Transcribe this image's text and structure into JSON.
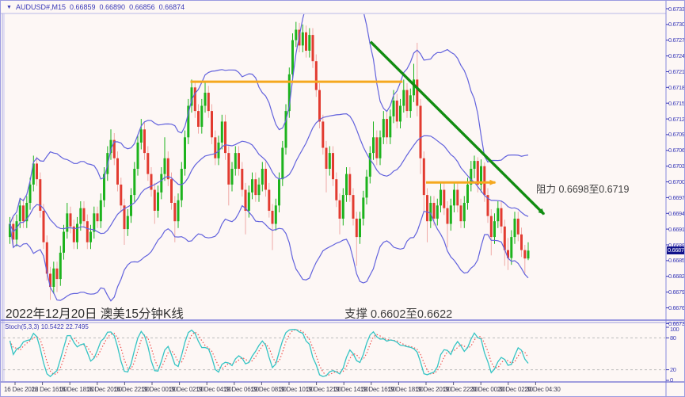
{
  "title_bar": {
    "dropdown_icon": "▼",
    "symbol": "AUDUSD#,M15",
    "open": "0.66859",
    "high": "0.66890",
    "low": "0.66856",
    "close": "0.66874"
  },
  "annotations": {
    "resistance": "阻力 0.6698至0.6719",
    "support": "支撑 0.6602至0.6622",
    "date_label": "2022年12月20日 澳美15分钟K线"
  },
  "indicator_panel": {
    "label": "Stoch(5,3,3) 10.5422 22.7495",
    "axis_labels": [
      100,
      80,
      20,
      0
    ]
  },
  "price_axis": {
    "tick_values": [
      0.67335,
      0.67305,
      0.67275,
      0.67245,
      0.67215,
      0.67185,
      0.67155,
      0.67125,
      0.67095,
      0.67065,
      0.67035,
      0.67005,
      0.66975,
      0.66945,
      0.66915,
      0.66885,
      0.66855,
      0.66825,
      0.66795,
      0.66765,
      0.66735
    ],
    "current_price": "0.66874"
  },
  "time_axis": {
    "labels": [
      "16 Dec 2022",
      "16 Dec 16:30",
      "16 Dec 18:30",
      "16 Dec 20:30",
      "16 Dec 22:30",
      "19 Dec 00:30",
      "19 Dec 02:30",
      "19 Dec 04:30",
      "19 Dec 06:30",
      "19 Dec 08:30",
      "19 Dec 10:30",
      "19 Dec 12:30",
      "19 Dec 14:30",
      "19 Dec 16:30",
      "19 Dec 18:30",
      "19 Dec 20:30",
      "19 Dec 22:30",
      "20 Dec 00:30",
      "20 Dec 02:30",
      "20 Dec 04:30"
    ]
  },
  "colors": {
    "background": "#fdf7f5",
    "frame": "#9b9be0",
    "axis_text": "#3a3ab8",
    "candle_up": "#1db31d",
    "candle_down": "#e23b30",
    "wick_down": "#f0aaa6",
    "bollinger": "#6262dd",
    "orange_line": "#f5a81f",
    "trend_arrow": "#118c11",
    "stoch_main": "#35c4c4",
    "stoch_signal": "#ef5350",
    "price_tag_bg": "#11118b",
    "level_dashed": "#bcbcbc"
  },
  "chart_data": {
    "type": "candlestick",
    "symbol": "AUDUSD#",
    "timeframe": "M15",
    "title": "AUDUSD#,M15 0.66859 0.66890 0.66856 0.66874",
    "y_axis": {
      "min": 0.66735,
      "max": 0.67335,
      "tick_step": 0.0003
    },
    "x_labels": [
      "16 Dec 2022",
      "16 Dec 16:30",
      "16 Dec 18:30",
      "16 Dec 20:30",
      "16 Dec 22:30",
      "19 Dec 00:30",
      "19 Dec 02:30",
      "19 Dec 04:30",
      "19 Dec 06:30",
      "19 Dec 08:30",
      "19 Dec 10:30",
      "19 Dec 12:30",
      "19 Dec 14:30",
      "19 Dec 16:30",
      "19 Dec 18:30",
      "19 Dec 20:30",
      "19 Dec 22:30",
      "20 Dec 00:30",
      "20 Dec 02:30",
      "20 Dec 04:30"
    ],
    "indicators": [
      {
        "name": "Bollinger Bands",
        "period": 20,
        "deviation": 2
      },
      {
        "name": "Stochastic",
        "params": "5,3,3",
        "last_values": [
          10.5422,
          22.7495
        ],
        "scale": [
          0,
          100
        ],
        "levels": [
          80,
          20
        ]
      }
    ],
    "drawings": {
      "resistance_zone": [
        0.6698,
        0.6719
      ],
      "support_zone": [
        0.6602,
        0.6622
      ],
      "resistance_line_upper": {
        "price": 0.67196,
        "from_index": 54,
        "to_index": 117,
        "arrow": false
      },
      "resistance_line_lower": {
        "price": 0.67004,
        "from_index": 124,
        "to_index": 146,
        "arrow": true
      },
      "trendline": {
        "from_index": 107.5,
        "from_price": 0.67272,
        "to_index": 160,
        "to_price": 0.66939,
        "arrow": true
      }
    },
    "candles": [
      [
        0.669,
        0.66938,
        0.66887,
        0.66925
      ],
      [
        0.66925,
        0.66938,
        0.66882,
        0.66895
      ],
      [
        0.66895,
        0.66943,
        0.66882,
        0.6693
      ],
      [
        0.6693,
        0.66973,
        0.66917,
        0.6696
      ],
      [
        0.6696,
        0.66973,
        0.66917,
        0.6693
      ],
      [
        0.6693,
        0.66978,
        0.66917,
        0.66965
      ],
      [
        0.66965,
        0.67013,
        0.66952,
        0.67
      ],
      [
        0.67,
        0.67055,
        0.66987,
        0.6704
      ],
      [
        0.6704,
        0.67053,
        0.66997,
        0.6701
      ],
      [
        0.6701,
        0.67023,
        0.66937,
        0.6695
      ],
      [
        0.6695,
        0.66963,
        0.66877,
        0.6689
      ],
      [
        0.6689,
        0.66903,
        0.66817,
        0.6683
      ],
      [
        0.6683,
        0.66843,
        0.6678,
        0.66805
      ],
      [
        0.66805,
        0.66853,
        0.66792,
        0.6684
      ],
      [
        0.6684,
        0.66853,
        0.66795,
        0.6682
      ],
      [
        0.6682,
        0.66883,
        0.66807,
        0.6687
      ],
      [
        0.6687,
        0.66923,
        0.66857,
        0.6691
      ],
      [
        0.6691,
        0.66965,
        0.66897,
        0.66945
      ],
      [
        0.66945,
        0.66958,
        0.66907,
        0.6692
      ],
      [
        0.6692,
        0.66933,
        0.66877,
        0.6689
      ],
      [
        0.6689,
        0.66938,
        0.66877,
        0.66925
      ],
      [
        0.66925,
        0.66968,
        0.66912,
        0.66955
      ],
      [
        0.66955,
        0.66968,
        0.66917,
        0.6693
      ],
      [
        0.6693,
        0.66943,
        0.66877,
        0.6689
      ],
      [
        0.6689,
        0.66923,
        0.66877,
        0.6691
      ],
      [
        0.6691,
        0.66958,
        0.66897,
        0.66945
      ],
      [
        0.66945,
        0.66958,
        0.66917,
        0.6693
      ],
      [
        0.6693,
        0.66983,
        0.66917,
        0.6697
      ],
      [
        0.6697,
        0.67033,
        0.66957,
        0.6702
      ],
      [
        0.6702,
        0.67073,
        0.67007,
        0.6706
      ],
      [
        0.6706,
        0.67105,
        0.67047,
        0.67085
      ],
      [
        0.67085,
        0.67098,
        0.67037,
        0.6705
      ],
      [
        0.6705,
        0.67063,
        0.66987,
        0.67
      ],
      [
        0.67,
        0.67013,
        0.66947,
        0.6696
      ],
      [
        0.6696,
        0.66973,
        0.66885,
        0.66915
      ],
      [
        0.66915,
        0.66953,
        0.66902,
        0.6694
      ],
      [
        0.6694,
        0.66993,
        0.66927,
        0.6698
      ],
      [
        0.6698,
        0.67043,
        0.66967,
        0.6703
      ],
      [
        0.6703,
        0.67093,
        0.67017,
        0.6708
      ],
      [
        0.6708,
        0.67125,
        0.67067,
        0.67105
      ],
      [
        0.67105,
        0.67118,
        0.67047,
        0.6706
      ],
      [
        0.6706,
        0.67073,
        0.67007,
        0.6702
      ],
      [
        0.6702,
        0.67033,
        0.66977,
        0.6699
      ],
      [
        0.6699,
        0.67003,
        0.66925,
        0.6695
      ],
      [
        0.6695,
        0.66998,
        0.66937,
        0.66985
      ],
      [
        0.66985,
        0.67033,
        0.66972,
        0.6702
      ],
      [
        0.6702,
        0.6709,
        0.67007,
        0.6705
      ],
      [
        0.6705,
        0.67063,
        0.66997,
        0.6701
      ],
      [
        0.6701,
        0.67023,
        0.66952,
        0.66965
      ],
      [
        0.66965,
        0.66978,
        0.6689,
        0.6693
      ],
      [
        0.6693,
        0.66983,
        0.66917,
        0.6697
      ],
      [
        0.6697,
        0.67043,
        0.66957,
        0.6703
      ],
      [
        0.6703,
        0.67103,
        0.67017,
        0.6709
      ],
      [
        0.6709,
        0.67163,
        0.67077,
        0.6715
      ],
      [
        0.6715,
        0.672,
        0.67137,
        0.67185
      ],
      [
        0.67185,
        0.67198,
        0.67127,
        0.6714
      ],
      [
        0.6714,
        0.67153,
        0.67097,
        0.6711
      ],
      [
        0.6711,
        0.67163,
        0.67097,
        0.6715
      ],
      [
        0.6715,
        0.67195,
        0.67137,
        0.67175
      ],
      [
        0.67175,
        0.67188,
        0.67127,
        0.6714
      ],
      [
        0.6714,
        0.67153,
        0.67077,
        0.6709
      ],
      [
        0.6709,
        0.67103,
        0.67037,
        0.6705
      ],
      [
        0.6705,
        0.67093,
        0.67037,
        0.6708
      ],
      [
        0.6708,
        0.67133,
        0.67067,
        0.6712
      ],
      [
        0.6712,
        0.67133,
        0.67047,
        0.6706
      ],
      [
        0.6706,
        0.67073,
        0.6696,
        0.67
      ],
      [
        0.67,
        0.67043,
        0.66987,
        0.6703
      ],
      [
        0.6703,
        0.67073,
        0.67017,
        0.6706
      ],
      [
        0.6706,
        0.67073,
        0.67017,
        0.6703
      ],
      [
        0.6703,
        0.67043,
        0.66977,
        0.6699
      ],
      [
        0.6699,
        0.67003,
        0.66905,
        0.6695
      ],
      [
        0.6695,
        0.66998,
        0.66937,
        0.66985
      ],
      [
        0.66985,
        0.67023,
        0.66972,
        0.6701
      ],
      [
        0.6701,
        0.67023,
        0.66967,
        0.6698
      ],
      [
        0.6698,
        0.67013,
        0.66967,
        0.67
      ],
      [
        0.67,
        0.67043,
        0.66987,
        0.6703
      ],
      [
        0.6703,
        0.67043,
        0.66977,
        0.6699
      ],
      [
        0.6699,
        0.67003,
        0.66937,
        0.6695
      ],
      [
        0.6695,
        0.66963,
        0.66875,
        0.66925
      ],
      [
        0.66925,
        0.66973,
        0.66912,
        0.6696
      ],
      [
        0.6696,
        0.67023,
        0.66947,
        0.6701
      ],
      [
        0.6701,
        0.67083,
        0.66997,
        0.6707
      ],
      [
        0.6707,
        0.67153,
        0.67057,
        0.6714
      ],
      [
        0.6714,
        0.67223,
        0.67127,
        0.6721
      ],
      [
        0.6721,
        0.67288,
        0.67197,
        0.67275
      ],
      [
        0.67275,
        0.6731,
        0.67262,
        0.67295
      ],
      [
        0.67295,
        0.67308,
        0.67252,
        0.67265
      ],
      [
        0.67265,
        0.67305,
        0.67252,
        0.6729
      ],
      [
        0.6729,
        0.67303,
        0.67242,
        0.67255
      ],
      [
        0.67255,
        0.67298,
        0.67242,
        0.67285
      ],
      [
        0.67285,
        0.67298,
        0.67222,
        0.67235
      ],
      [
        0.67235,
        0.67248,
        0.67167,
        0.6718
      ],
      [
        0.6718,
        0.67193,
        0.67107,
        0.6712
      ],
      [
        0.6712,
        0.67133,
        0.67057,
        0.6707
      ],
      [
        0.6707,
        0.67083,
        0.66985,
        0.6703
      ],
      [
        0.6703,
        0.67073,
        0.67017,
        0.6706
      ],
      [
        0.6706,
        0.67073,
        0.66997,
        0.6701
      ],
      [
        0.6701,
        0.67023,
        0.66957,
        0.6697
      ],
      [
        0.6697,
        0.66983,
        0.66905,
        0.66935
      ],
      [
        0.66935,
        0.66993,
        0.66922,
        0.6698
      ],
      [
        0.6698,
        0.67033,
        0.66967,
        0.6702
      ],
      [
        0.6702,
        0.67033,
        0.66967,
        0.6698
      ],
      [
        0.6698,
        0.66993,
        0.66922,
        0.66935
      ],
      [
        0.66935,
        0.66948,
        0.66845,
        0.669
      ],
      [
        0.669,
        0.66948,
        0.66887,
        0.66935
      ],
      [
        0.66935,
        0.66988,
        0.66922,
        0.66975
      ],
      [
        0.66975,
        0.67028,
        0.66962,
        0.67015
      ],
      [
        0.67015,
        0.67073,
        0.67002,
        0.6706
      ],
      [
        0.6706,
        0.6712,
        0.67047,
        0.6709
      ],
      [
        0.6709,
        0.67103,
        0.67037,
        0.6705
      ],
      [
        0.6705,
        0.67103,
        0.67037,
        0.6709
      ],
      [
        0.6709,
        0.6714,
        0.67077,
        0.67125
      ],
      [
        0.67125,
        0.67138,
        0.67077,
        0.6709
      ],
      [
        0.6709,
        0.67143,
        0.67077,
        0.6713
      ],
      [
        0.6713,
        0.6718,
        0.67117,
        0.6716
      ],
      [
        0.6716,
        0.67173,
        0.67107,
        0.6712
      ],
      [
        0.6712,
        0.67163,
        0.67107,
        0.6715
      ],
      [
        0.6715,
        0.672,
        0.67137,
        0.6718
      ],
      [
        0.6718,
        0.67193,
        0.67127,
        0.6714
      ],
      [
        0.6714,
        0.67183,
        0.67127,
        0.6717
      ],
      [
        0.6717,
        0.6723,
        0.67157,
        0.672
      ],
      [
        0.672,
        0.6727,
        0.6713,
        0.6715
      ],
      [
        0.6715,
        0.67163,
        0.6702,
        0.6705
      ],
      [
        0.6705,
        0.67063,
        0.6695,
        0.6698
      ],
      [
        0.6698,
        0.66993,
        0.6689,
        0.6693
      ],
      [
        0.6693,
        0.66978,
        0.66917,
        0.66965
      ],
      [
        0.66965,
        0.66978,
        0.66922,
        0.66935
      ],
      [
        0.66935,
        0.66973,
        0.66922,
        0.6696
      ],
      [
        0.6696,
        0.67003,
        0.66947,
        0.6699
      ],
      [
        0.6699,
        0.67003,
        0.66942,
        0.66955
      ],
      [
        0.66955,
        0.66968,
        0.6688,
        0.66925
      ],
      [
        0.66925,
        0.66973,
        0.66912,
        0.6696
      ],
      [
        0.6696,
        0.67003,
        0.66947,
        0.6699
      ],
      [
        0.6699,
        0.67003,
        0.66947,
        0.6696
      ],
      [
        0.6696,
        0.66973,
        0.66917,
        0.6693
      ],
      [
        0.6693,
        0.66978,
        0.66917,
        0.66965
      ],
      [
        0.66965,
        0.67013,
        0.66952,
        0.67
      ],
      [
        0.67,
        0.67045,
        0.66987,
        0.6703
      ],
      [
        0.6703,
        0.67055,
        0.67012,
        0.67045
      ],
      [
        0.67045,
        0.67052,
        0.66985,
        0.67
      ],
      [
        0.67,
        0.67048,
        0.66985,
        0.67035
      ],
      [
        0.67035,
        0.67042,
        0.66967,
        0.6698
      ],
      [
        0.6698,
        0.66993,
        0.66927,
        0.6694
      ],
      [
        0.6694,
        0.66953,
        0.66865,
        0.669
      ],
      [
        0.669,
        0.66945,
        0.66887,
        0.6693
      ],
      [
        0.6693,
        0.66968,
        0.66917,
        0.66955
      ],
      [
        0.66955,
        0.66968,
        0.66907,
        0.6692
      ],
      [
        0.6692,
        0.66933,
        0.66845,
        0.66875
      ],
      [
        0.66875,
        0.66898,
        0.66837,
        0.6686
      ],
      [
        0.6686,
        0.66913,
        0.66847,
        0.669
      ],
      [
        0.669,
        0.66948,
        0.66887,
        0.66935
      ],
      [
        0.66935,
        0.66948,
        0.66892,
        0.66905
      ],
      [
        0.66905,
        0.66918,
        0.66862,
        0.66875
      ],
      [
        0.66875,
        0.66885,
        0.6683,
        0.66859
      ],
      [
        0.66859,
        0.6689,
        0.66856,
        0.66874
      ]
    ]
  }
}
